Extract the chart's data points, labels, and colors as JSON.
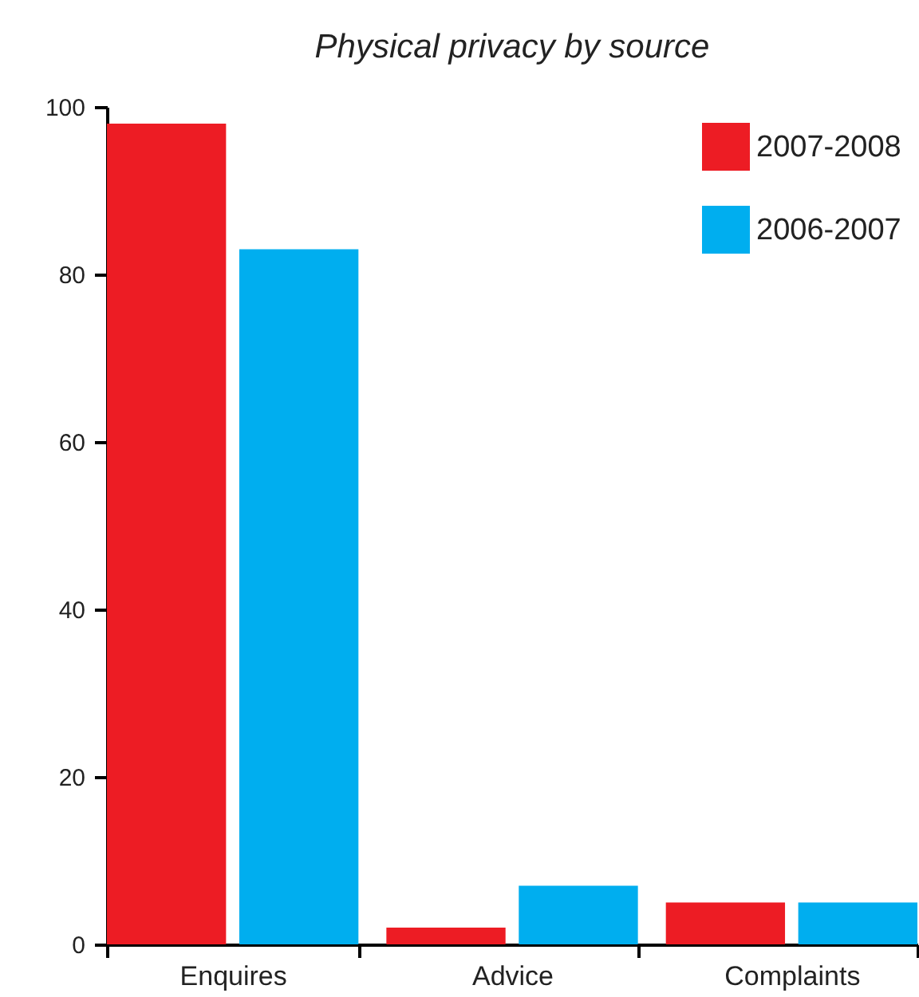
{
  "chart_data": {
    "type": "bar",
    "title": "Physical privacy by source",
    "categories": [
      "Enquires",
      "Advice",
      "Complaints"
    ],
    "series": [
      {
        "name": "2007-2008",
        "color": "#ed1c24",
        "values": [
          98,
          2,
          5
        ]
      },
      {
        "name": "2006-2007",
        "color": "#00aeef",
        "values": [
          83,
          7,
          5
        ]
      }
    ],
    "ylim": [
      0,
      100
    ],
    "yticks": [
      0,
      20,
      40,
      60,
      80,
      100
    ],
    "grid": false,
    "legend": "top right"
  }
}
